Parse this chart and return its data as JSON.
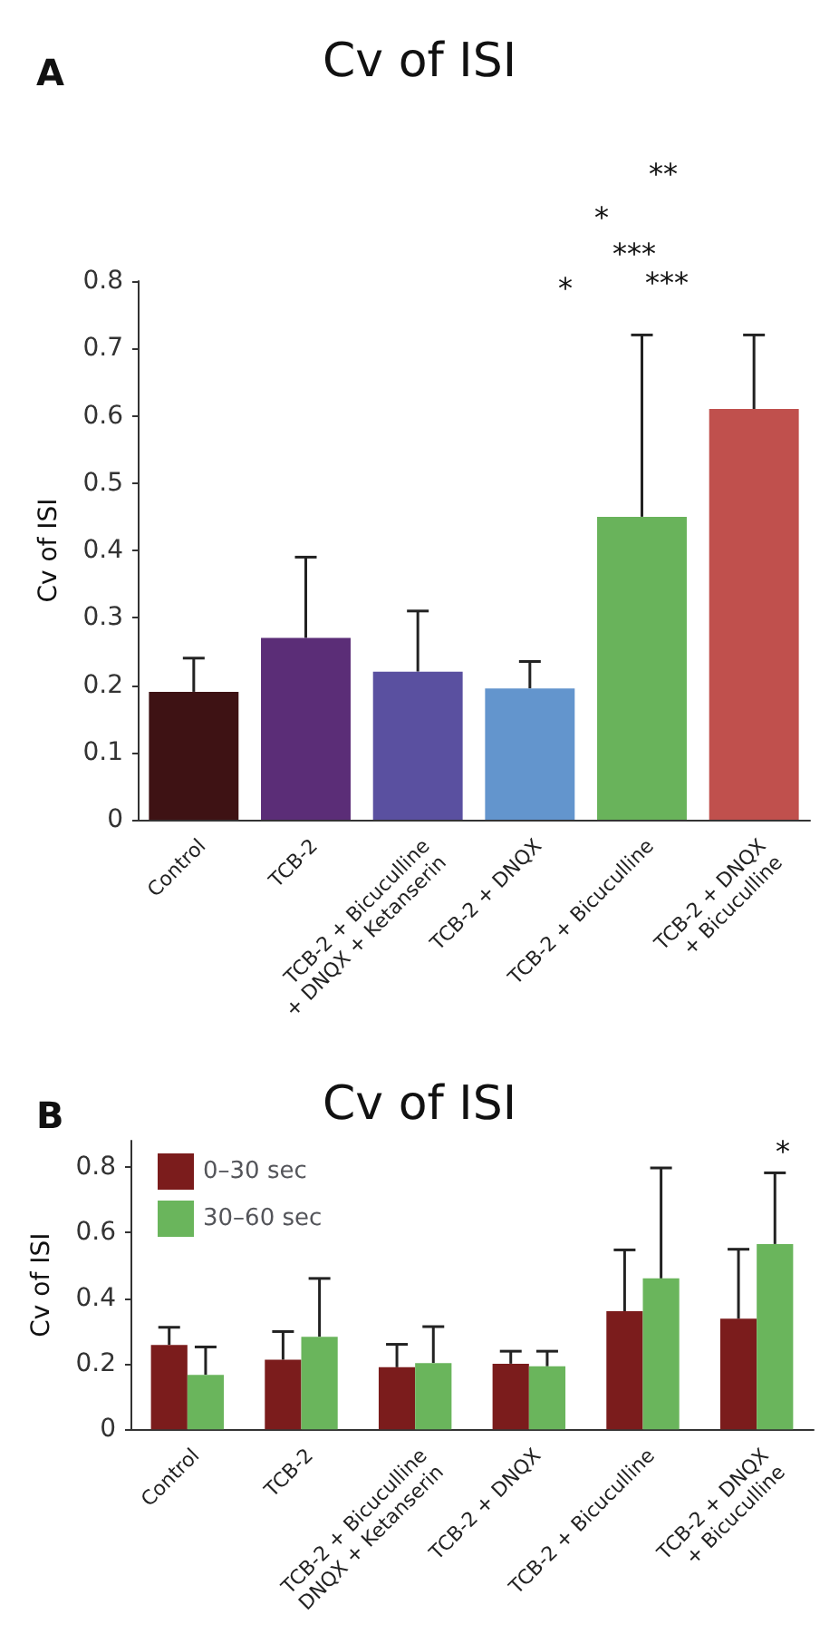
{
  "chart_data": [
    {
      "type": "bar",
      "title": "Cv of ISI",
      "ylabel": "Cv of ISI",
      "categories": [
        "Control",
        "TCB-2",
        "TCB-2 + Bicuculline\n+ DNQX + Ketanserin",
        "TCB-2 + DNQX",
        "TCB-2 + Bicuculline",
        "TCB-2 + DNQX\n+ Bicuculline"
      ],
      "values": [
        0.19,
        0.27,
        0.22,
        0.195,
        0.45,
        0.61
      ],
      "colors": [
        "#3e1214",
        "#5b2d77",
        "#5a50a0",
        "#6395cd",
        "#69b35b",
        "#c0504d"
      ],
      "errors": [
        [
          0.19,
          0.24
        ],
        [
          0.27,
          0.39
        ],
        [
          0.22,
          0.31
        ],
        [
          0.195,
          0.235
        ],
        [
          0.45,
          0.72
        ],
        [
          0.61,
          0.72
        ]
      ],
      "ylim": [
        0,
        0.8
      ],
      "yticks": [
        0,
        0.1,
        0.2,
        0.3,
        0.4,
        0.5,
        0.6,
        0.7,
        0.8
      ],
      "grid": false,
      "annotations": [
        "A",
        "**",
        "*",
        "***",
        "***",
        "*"
      ]
    },
    {
      "type": "bar",
      "title": "Cv of ISI",
      "ylabel": "Cv of ISI",
      "categories": [
        "Control",
        "TCB-2",
        "TCB-2 + Bicuculline\nDNQX + Ketanserin",
        "TCB-2 + DNQX",
        "TCB-2 + Bicuculline",
        "TCB-2 + DNQX\n+ Bicuculline"
      ],
      "series": [
        {
          "name": "0–30 sec",
          "color": "#7b1c1c",
          "values": [
            0.257,
            0.212,
            0.189,
            0.2,
            0.36,
            0.337
          ],
          "errors": [
            [
              0.257,
              0.311
            ],
            [
              0.212,
              0.298
            ],
            [
              0.189,
              0.259
            ],
            [
              0.2,
              0.238
            ],
            [
              0.36,
              0.547
            ],
            [
              0.337,
              0.549
            ]
          ]
        },
        {
          "name": "30–60 sec",
          "color": "#6ab55c",
          "values": [
            0.166,
            0.282,
            0.202,
            0.192,
            0.46,
            0.565
          ],
          "errors": [
            [
              0.166,
              0.251
            ],
            [
              0.282,
              0.46
            ],
            [
              0.202,
              0.313
            ],
            [
              0.192,
              0.238
            ],
            [
              0.46,
              0.797
            ],
            [
              0.565,
              0.782
            ]
          ]
        }
      ],
      "ylim": [
        0,
        0.88
      ],
      "yticks": [
        0,
        0.2,
        0.4,
        0.6,
        0.8
      ],
      "grid": false,
      "legend": "top left",
      "annotations": [
        "B",
        "*"
      ]
    }
  ]
}
